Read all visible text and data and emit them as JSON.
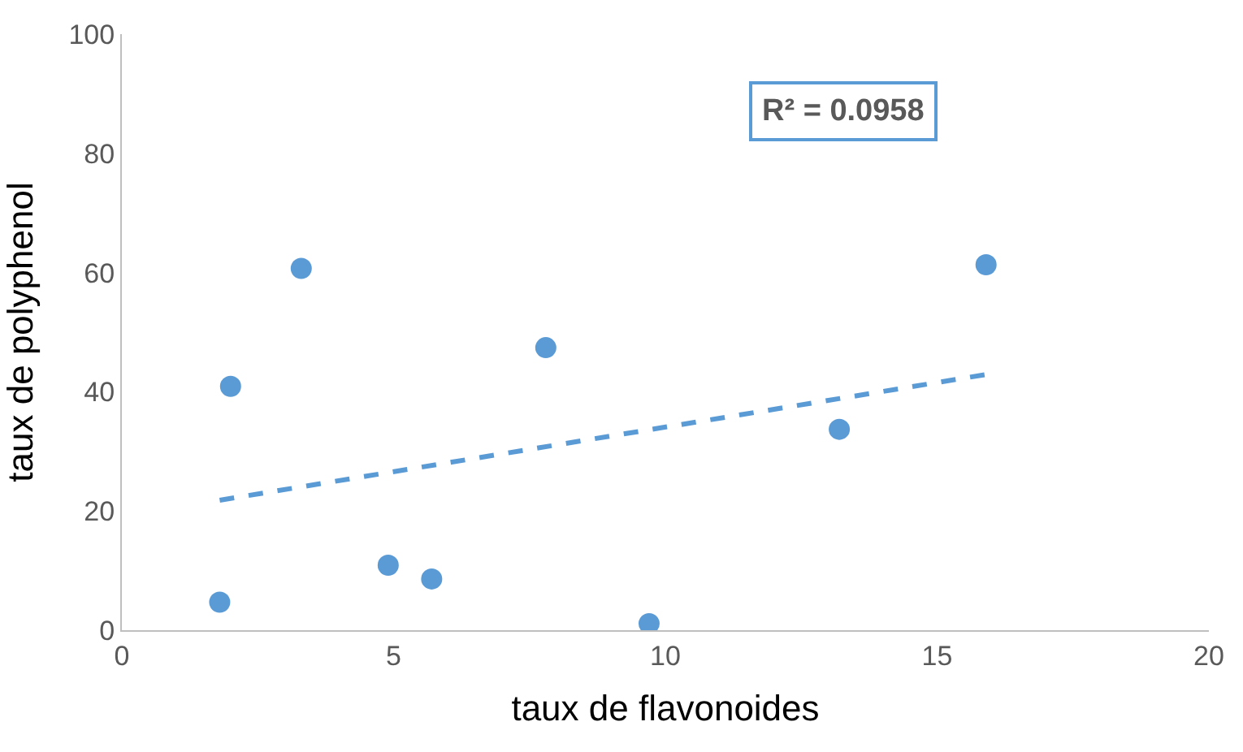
{
  "chart_data": {
    "type": "scatter",
    "xlabel": "taux de flavonoides",
    "ylabel": "taux de polyphenol",
    "xlim": [
      0,
      20
    ],
    "xticks": [
      0,
      5,
      10,
      15,
      20
    ],
    "ylim": [
      0,
      100
    ],
    "yticks": [
      0,
      20,
      40,
      60,
      80,
      100
    ],
    "marker": "circle",
    "series": [
      {
        "color": "#5b9bd5",
        "x": [
          1.8,
          2.0,
          3.3,
          4.9,
          5.7,
          7.8,
          9.7,
          13.2,
          15.9
        ],
        "values": [
          4.7,
          40.9,
          60.7,
          10.9,
          8.6,
          47.4,
          1.1,
          33.7,
          61.3
        ]
      },
      {
        "type": "line",
        "color": "#5b9bd5",
        "line_style": "dashed",
        "marker": "none",
        "x": [
          1.8,
          15.9
        ],
        "values": [
          21.8,
          42.9
        ]
      }
    ],
    "annotations": [
      "R² = 0.0958"
    ]
  }
}
